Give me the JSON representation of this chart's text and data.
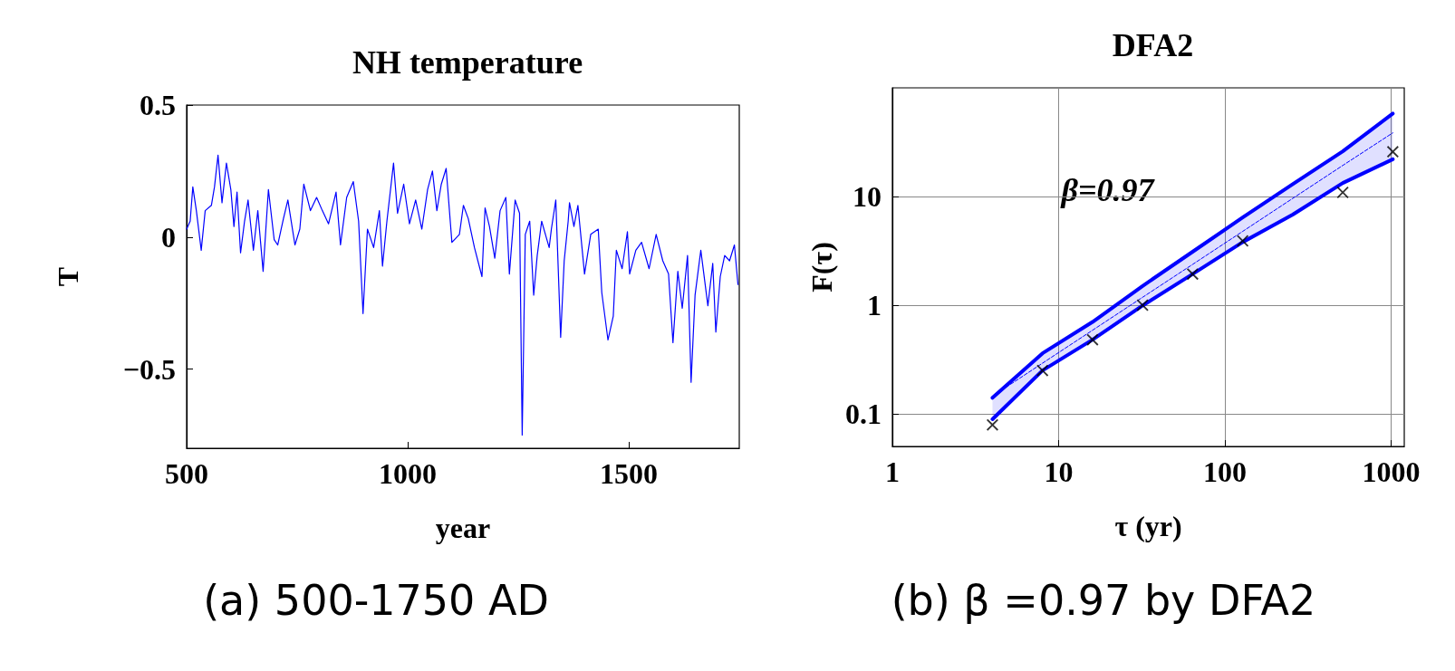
{
  "chart_data": [
    {
      "type": "line",
      "title": "NH temperature",
      "xlabel": "year",
      "ylabel": "T",
      "xlim": [
        500,
        1750
      ],
      "ylim": [
        -0.8,
        0.5
      ],
      "xticks": [
        500,
        1000,
        1500
      ],
      "yticks": [
        0.5,
        0,
        {
          "value": -0.5,
          "label": "−0.5"
        }
      ],
      "grid": false,
      "marker": "none",
      "annotations": [
        "(a) 500-1750 AD"
      ],
      "series": [
        {
          "color": "#0000ff",
          "x": [
            500,
            508,
            514,
            522,
            533,
            542,
            556,
            563,
            571,
            580,
            590,
            600,
            607,
            614,
            622,
            631,
            639,
            651,
            661,
            673,
            685,
            698,
            706,
            719,
            729,
            745,
            756,
            765,
            780,
            794,
            807,
            821,
            838,
            848,
            862,
            877,
            889,
            899,
            909,
            923,
            936,
            943,
            953,
            968,
            977,
            991,
            1004,
            1018,
            1032,
            1045,
            1056,
            1066,
            1076,
            1087,
            1100,
            1117,
            1126,
            1137,
            1151,
            1168,
            1175,
            1185,
            1197,
            1209,
            1222,
            1230,
            1243,
            1253,
            1259,
            1266,
            1276,
            1285,
            1293,
            1303,
            1320,
            1325,
            1335,
            1346,
            1354,
            1363,
            1366,
            1376,
            1385,
            1400,
            1414,
            1431,
            1439,
            1453,
            1465,
            1472,
            1485,
            1497,
            1502,
            1516,
            1529,
            1546,
            1562,
            1577,
            1590,
            1600,
            1611,
            1621,
            1633,
            1641,
            1650,
            1663,
            1679,
            1690,
            1697,
            1707,
            1717,
            1728,
            1739,
            1747
          ],
          "values": [
            0.03,
            0.06,
            0.19,
            0.1,
            -0.05,
            0.1,
            0.12,
            0.19,
            0.31,
            0.13,
            0.28,
            0.18,
            0.04,
            0.17,
            -0.06,
            0.06,
            0.14,
            -0.05,
            0.1,
            -0.13,
            0.18,
            -0.01,
            -0.03,
            0.07,
            0.14,
            -0.03,
            0.03,
            0.2,
            0.1,
            0.15,
            0.1,
            0.05,
            0.17,
            -0.03,
            0.15,
            0.21,
            0.06,
            -0.29,
            0.03,
            -0.04,
            0.1,
            -0.11,
            0.06,
            0.28,
            0.09,
            0.2,
            0.05,
            0.14,
            0.03,
            0.18,
            0.25,
            0.1,
            0.2,
            0.26,
            -0.02,
            0.01,
            0.12,
            0.07,
            -0.04,
            -0.15,
            0.11,
            0.04,
            -0.08,
            0.1,
            0.15,
            -0.14,
            0.14,
            0.09,
            -0.75,
            0.01,
            0.06,
            -0.22,
            -0.07,
            0.06,
            -0.04,
            0.03,
            0.14,
            -0.38,
            -0.09,
            0.06,
            0.13,
            0.04,
            0.12,
            -0.14,
            0.01,
            0.03,
            -0.21,
            -0.39,
            -0.3,
            -0.05,
            -0.12,
            0.02,
            -0.14,
            -0.05,
            -0.02,
            -0.12,
            0.01,
            -0.09,
            -0.14,
            -0.4,
            -0.13,
            -0.27,
            -0.07,
            -0.55,
            -0.22,
            -0.05,
            -0.26,
            -0.1,
            -0.36,
            -0.15,
            -0.07,
            -0.09,
            -0.03,
            -0.18
          ]
        }
      ]
    },
    {
      "type": "line",
      "title": "DFA2",
      "xlabel": "τ (yr)",
      "ylabel": "F(τ)",
      "log": "xy",
      "xlim": [
        1,
        1200
      ],
      "ylim": [
        0.05,
        100
      ],
      "xticks": [
        1,
        10,
        100,
        1000
      ],
      "yticks": [
        0.1,
        1,
        10
      ],
      "grid": true,
      "annotations": [
        "β=0.97",
        "(b) β =0.97 by DFA2"
      ],
      "series": [
        {
          "type": "line",
          "color": "#0000ff",
          "marker": "none",
          "x": [
            4,
            8,
            16,
            32,
            64,
            128,
            256,
            512,
            1024
          ],
          "values": [
            0.14,
            0.36,
            0.7,
            1.5,
            3.1,
            6.4,
            13,
            26,
            58
          ]
        },
        {
          "type": "line",
          "color": "#0000ff",
          "marker": "none",
          "x": [
            4,
            8,
            16,
            32,
            64,
            128,
            256,
            512,
            1024
          ],
          "values": [
            0.089,
            0.25,
            0.48,
            0.99,
            1.93,
            3.8,
            6.8,
            13.3,
            22
          ]
        },
        {
          "color": "#0000ff",
          "marker": "none",
          "line_style": "dashed",
          "x": [
            4,
            8,
            16,
            32,
            64,
            128,
            256,
            512,
            1024
          ],
          "values": [
            0.145,
            0.292,
            0.587,
            1.18,
            2.37,
            4.77,
            9.6,
            19.3,
            38.5
          ],
          "lower": [
            0.089,
            0.25,
            0.48,
            0.99,
            1.93,
            3.8,
            6.8,
            13.3,
            22
          ],
          "upper": [
            0.14,
            0.36,
            0.7,
            1.5,
            3.1,
            6.4,
            13,
            26,
            58
          ]
        },
        {
          "type": "scatter",
          "color": "#000000",
          "marker": "cross",
          "x": [
            4,
            8,
            16,
            32,
            64,
            128,
            256,
            512,
            1024
          ],
          "values": [
            0.079,
            0.25,
            0.48,
            1.0,
            1.93,
            3.9,
            null,
            10.9,
            25.8
          ]
        }
      ]
    }
  ]
}
